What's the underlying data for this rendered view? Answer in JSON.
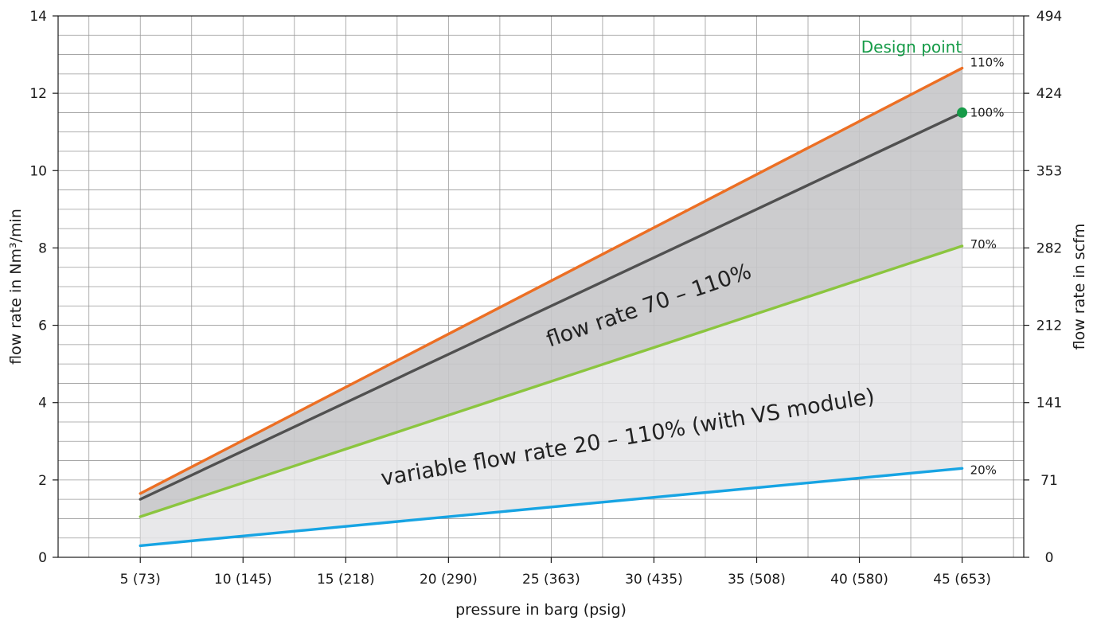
{
  "chart_data": {
    "type": "line",
    "xlabel": "pressure in barg (psig)",
    "ylabel": "flow rate in Nm³/min",
    "y2label": "flow rate in scfm",
    "categories": [
      "5 (73)",
      "10 (145)",
      "15 (218)",
      "20 (290)",
      "25 (363)",
      "30 (435)",
      "35 (508)",
      "40 (580)",
      "45 (653)"
    ],
    "x": [
      5,
      45
    ],
    "xlim": [
      1,
      48
    ],
    "ylim": [
      0,
      14
    ],
    "yticks": [
      0,
      2,
      4,
      6,
      8,
      10,
      12,
      14
    ],
    "y2ticks": [
      "0",
      "71",
      "141",
      "212",
      "282",
      "353",
      "424",
      "494"
    ],
    "grid": true,
    "series": [
      {
        "name": "110%",
        "color": "#ec6f24",
        "values": [
          1.65,
          12.65
        ]
      },
      {
        "name": "100%",
        "color": "#505050",
        "values": [
          1.5,
          11.5
        ]
      },
      {
        "name": "70%",
        "color": "#8bc53f",
        "values": [
          1.05,
          8.05
        ]
      },
      {
        "name": "20%",
        "color": "#17a4e3",
        "values": [
          0.3,
          2.3
        ]
      }
    ],
    "band_colors": {
      "upper": "#c7c7c9",
      "lower": "#e4e4e6"
    },
    "band_labels": [
      "flow rate 70 – 110%",
      "variable flow rate 20 – 110% (with VS module)"
    ],
    "design_point": {
      "label": "Design point",
      "x": 45,
      "y": 11.5,
      "color": "#169b48"
    }
  }
}
